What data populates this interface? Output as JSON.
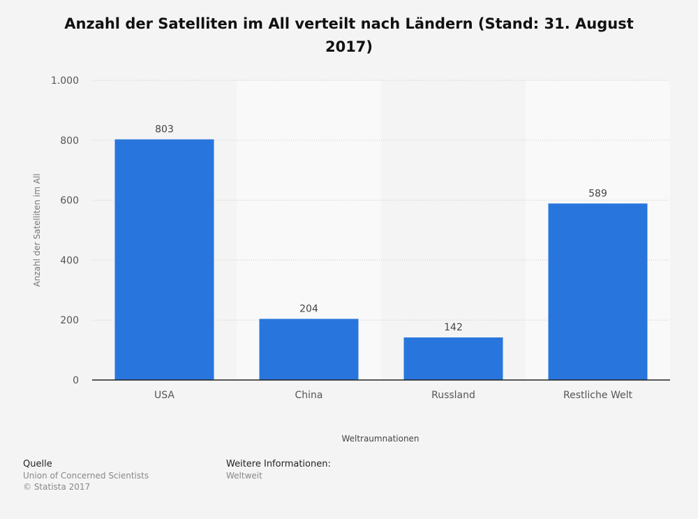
{
  "chart_data": {
    "type": "bar",
    "title": "Anzahl der Satelliten im All verteilt nach Ländern (Stand: 31. August 2017)",
    "xlabel": "Weltraumnationen",
    "ylabel": "Anzahl der Satelliten im All",
    "categories": [
      "USA",
      "China",
      "Russland",
      "Restliche Welt"
    ],
    "values": [
      803,
      204,
      142,
      589
    ],
    "value_labels": [
      "803",
      "204",
      "142",
      "589"
    ],
    "ylim": [
      0,
      1000
    ],
    "yticks": [
      0,
      200,
      400,
      600,
      800,
      1000
    ],
    "ytick_labels": [
      "0",
      "200",
      "400",
      "600",
      "800",
      "1.000"
    ],
    "grid": true,
    "bar_color": "#2876dd"
  },
  "footer": {
    "source_heading": "Quelle",
    "source_name": "Union of Concerned Scientists",
    "copyright": "© Statista 2017",
    "info_heading": "Weitere Informationen:",
    "info_text": "Weltweit"
  }
}
